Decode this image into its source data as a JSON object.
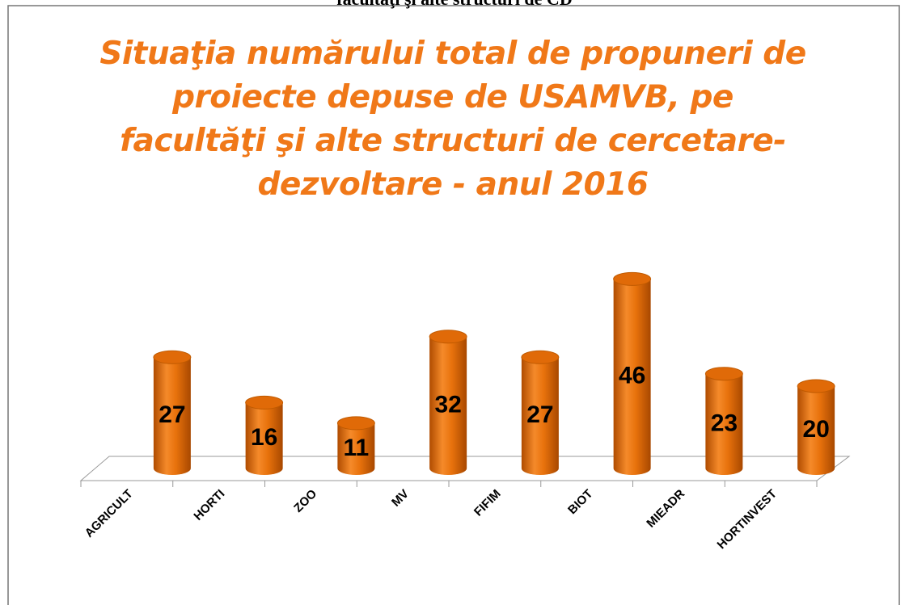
{
  "header": "facultăţi şi alte structuri de CD",
  "chart_data": {
    "type": "bar",
    "title": "Situaţia numărului total de propuneri de proiecte depuse de USAMVB, pe facultăţi şi alte structuri de cercetare-dezvoltare - anul 2016",
    "categories": [
      "AGRICULT",
      "HORTI",
      "ZOO",
      "MV",
      "FIFIM",
      "BIOT",
      "MIEADR",
      "HORTINVEST"
    ],
    "values": [
      27,
      16,
      11,
      32,
      27,
      46,
      23,
      20
    ],
    "color": "#e8720c"
  }
}
